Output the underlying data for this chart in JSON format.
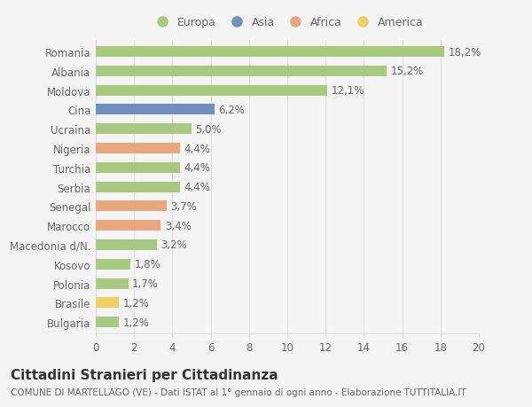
{
  "countries": [
    "Romania",
    "Albania",
    "Moldova",
    "Cina",
    "Ucraina",
    "Nigeria",
    "Turchia",
    "Serbia",
    "Senegal",
    "Marocco",
    "Macedonia d/N.",
    "Kosovo",
    "Polonia",
    "Brasile",
    "Bulgaria"
  ],
  "values": [
    18.2,
    15.2,
    12.1,
    6.2,
    5.0,
    4.4,
    4.4,
    4.4,
    3.7,
    3.4,
    3.2,
    1.8,
    1.7,
    1.2,
    1.2
  ],
  "labels": [
    "18,2%",
    "15,2%",
    "12,1%",
    "6,2%",
    "5,0%",
    "4,4%",
    "4,4%",
    "4,4%",
    "3,7%",
    "3,4%",
    "3,2%",
    "1,8%",
    "1,7%",
    "1,2%",
    "1,2%"
  ],
  "colors": [
    "#a8c97f",
    "#a8c97f",
    "#a8c97f",
    "#7090bf",
    "#a8c97f",
    "#e8a87c",
    "#a8c97f",
    "#a8c97f",
    "#e8a87c",
    "#e8a87c",
    "#a8c97f",
    "#a8c97f",
    "#a8c97f",
    "#f0d060",
    "#a8c97f"
  ],
  "legend_labels": [
    "Europa",
    "Asia",
    "Africa",
    "America"
  ],
  "legend_colors": [
    "#a8c97f",
    "#7090bf",
    "#e8a87c",
    "#f0d060"
  ],
  "xlim": [
    0,
    20
  ],
  "xticks": [
    0,
    2,
    4,
    6,
    8,
    10,
    12,
    14,
    16,
    18,
    20
  ],
  "title": "Cittadini Stranieri per Cittadinanza",
  "subtitle": "COMUNE DI MARTELLAGO (VE) - Dati ISTAT al 1° gennaio di ogni anno - Elaborazione TUTTITALIA.IT",
  "background_color": "#f5f5f5",
  "bar_height": 0.55,
  "grid_color": "#dddddd",
  "label_color": "#666666",
  "label_fontsize": 8.5,
  "tick_fontsize": 8.5,
  "title_fontsize": 11,
  "subtitle_fontsize": 7.5
}
